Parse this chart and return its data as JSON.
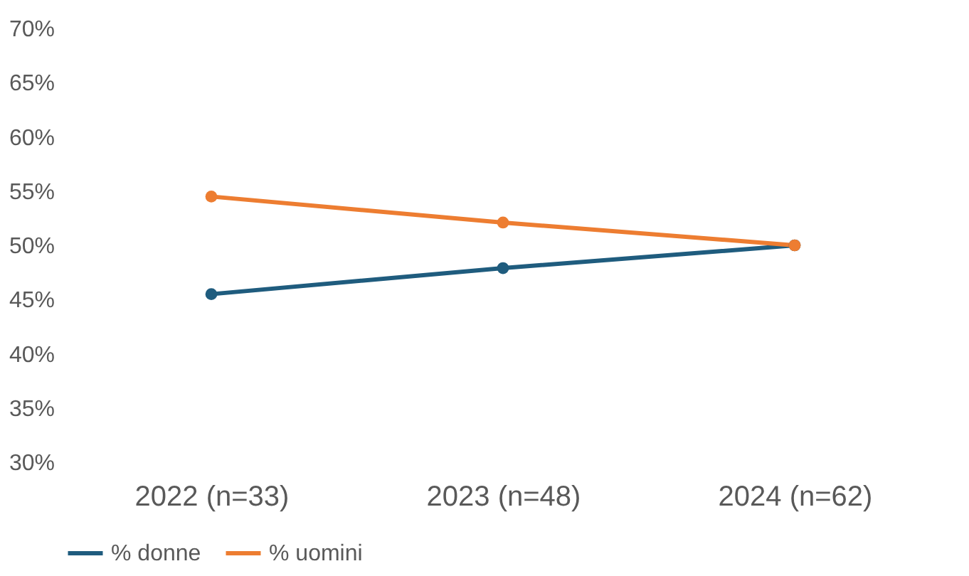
{
  "chart_data": {
    "type": "line",
    "categories": [
      "2022 (n=33)",
      "2023 (n=48)",
      "2024 (n=62)"
    ],
    "series": [
      {
        "name": "% donne",
        "color": "#1f5c7e",
        "values": [
          45.5,
          47.9,
          50
        ]
      },
      {
        "name": "% uomini",
        "color": "#ed7d31",
        "values": [
          54.5,
          52.1,
          50
        ]
      }
    ],
    "ylim": [
      30,
      70
    ],
    "yticks": [
      {
        "value": 30,
        "label": "30%"
      },
      {
        "value": 35,
        "label": "35%"
      },
      {
        "value": 40,
        "label": "40%"
      },
      {
        "value": 45,
        "label": "45%"
      },
      {
        "value": 50,
        "label": "50%"
      },
      {
        "value": 55,
        "label": "55%"
      },
      {
        "value": 60,
        "label": "60%"
      },
      {
        "value": 65,
        "label": "65%"
      },
      {
        "value": 70,
        "label": "70%"
      }
    ],
    "grid": false,
    "legend": "bottom",
    "marker": "circle",
    "line_style": "solid"
  }
}
